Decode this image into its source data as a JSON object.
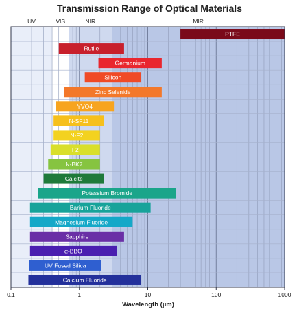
{
  "chart_data": {
    "type": "bar",
    "orientation": "horizontal-range",
    "title": "Transmission Range of Optical Materials",
    "xlabel": "Wavelength (µm)",
    "xscale": "log",
    "xlim": [
      0.1,
      1000
    ],
    "x_ticks": [
      "0.1",
      "1",
      "10",
      "100",
      "1000"
    ],
    "grid": true,
    "regions": [
      {
        "label": "UV",
        "start": 0.1,
        "end": 0.4,
        "color": "#e9eef9"
      },
      {
        "label": "VIS",
        "start": 0.4,
        "end": 0.7,
        "color": "#ffffff"
      },
      {
        "label": "NIR",
        "start": 0.7,
        "end": 3,
        "color": "#cfd9ef"
      },
      {
        "label": "MIR",
        "start": 3,
        "end": 1000,
        "color": "#b9c7e6"
      }
    ],
    "series": [
      {
        "name": "PTFE",
        "start": 30,
        "end": 1000,
        "color": "#7a0a1a"
      },
      {
        "name": "Rutile",
        "start": 0.5,
        "end": 4.5,
        "color": "#c8202c"
      },
      {
        "name": "Germanium",
        "start": 1.9,
        "end": 16,
        "color": "#e9262e"
      },
      {
        "name": "Silicon",
        "start": 1.2,
        "end": 8,
        "color": "#f04a26"
      },
      {
        "name": "Zinc Selenide",
        "start": 0.6,
        "end": 16,
        "color": "#f3782a"
      },
      {
        "name": "YVO4",
        "start": 0.45,
        "end": 3.2,
        "color": "#f7a41f"
      },
      {
        "name": "N-SF11",
        "start": 0.42,
        "end": 2.3,
        "color": "#f6c01c"
      },
      {
        "name": "N-F2",
        "start": 0.42,
        "end": 2.0,
        "color": "#f3d220"
      },
      {
        "name": "F2",
        "start": 0.38,
        "end": 2.0,
        "color": "#d9df2a"
      },
      {
        "name": "N-BK7",
        "start": 0.35,
        "end": 2.0,
        "color": "#86c440"
      },
      {
        "name": "Calcite",
        "start": 0.3,
        "end": 2.3,
        "color": "#1f7a3a"
      },
      {
        "name": "Potassium Bromide",
        "start": 0.25,
        "end": 26,
        "color": "#1aa58a"
      },
      {
        "name": "Barium Fluoride",
        "start": 0.19,
        "end": 11,
        "color": "#17a39a"
      },
      {
        "name": "Magnesium Fluoride",
        "start": 0.19,
        "end": 6,
        "color": "#15a8c8"
      },
      {
        "name": "Sapphire",
        "start": 0.19,
        "end": 4.5,
        "color": "#6a2fa6"
      },
      {
        "name": "α-BBO",
        "start": 0.19,
        "end": 3.5,
        "color": "#4a1fb0"
      },
      {
        "name": "UV Fused Silica",
        "start": 0.185,
        "end": 2.1,
        "color": "#2f5fd0"
      },
      {
        "name": "Calcium Fluoride",
        "start": 0.18,
        "end": 8,
        "color": "#23309b"
      }
    ]
  }
}
